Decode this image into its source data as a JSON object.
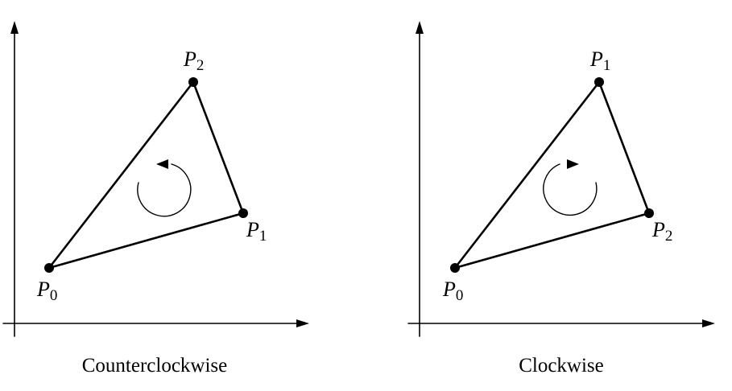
{
  "panels": [
    {
      "caption": "Counterclockwise",
      "orientation": "counterclockwise",
      "points": [
        {
          "letter": "P",
          "sub": "0"
        },
        {
          "letter": "P",
          "sub": "1"
        },
        {
          "letter": "P",
          "sub": "2"
        }
      ]
    },
    {
      "caption": "Clockwise",
      "orientation": "clockwise",
      "points": [
        {
          "letter": "P",
          "sub": "0"
        },
        {
          "letter": "P",
          "sub": "1"
        },
        {
          "letter": "P",
          "sub": "2"
        }
      ]
    }
  ]
}
